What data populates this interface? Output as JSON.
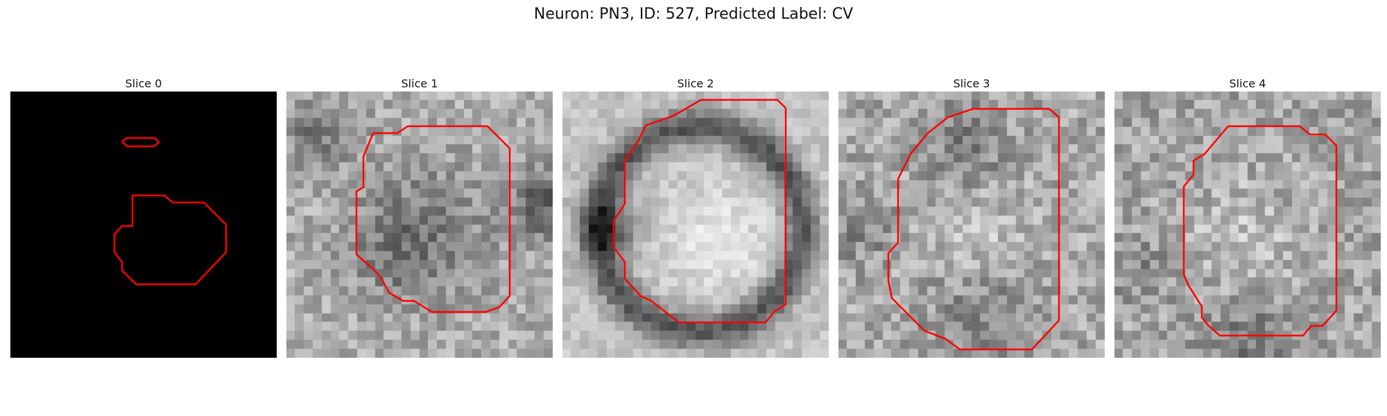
{
  "figure": {
    "suptitle": "Neuron: PN3, ID: 527, Predicted Label: CV"
  },
  "panels": [
    {
      "title": "Slice 0",
      "image": "black"
    },
    {
      "title": "Slice 1",
      "image": "grayscale"
    },
    {
      "title": "Slice 2",
      "image": "grayscale"
    },
    {
      "title": "Slice 3",
      "image": "grayscale"
    },
    {
      "title": "Slice 4",
      "image": "grayscale"
    }
  ],
  "colors": {
    "contour": "#ff0000"
  }
}
